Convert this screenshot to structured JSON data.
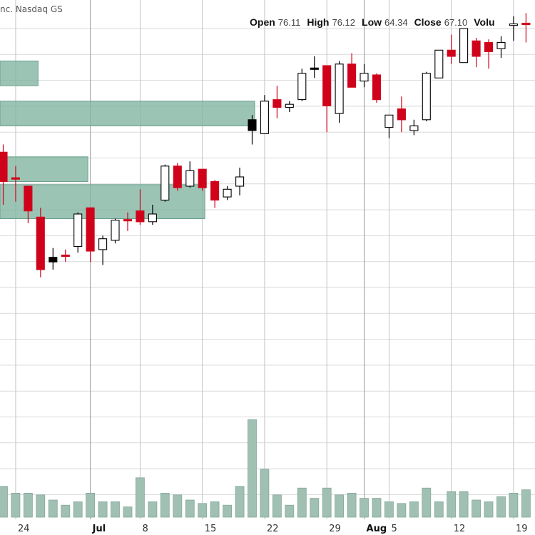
{
  "header": {
    "title": "nc. Nasdaq GS",
    "ohlc": [
      {
        "label": "Open",
        "value": "76.11"
      },
      {
        "label": "High",
        "value": "76.12"
      },
      {
        "label": "Low",
        "value": "64.34"
      },
      {
        "label": "Close",
        "value": "67.10"
      },
      {
        "label": "Volu",
        "value": ""
      }
    ]
  },
  "colors": {
    "up": "#ffffff",
    "down": "#d0021b",
    "black_candle": "#000000",
    "zone": "#7fb3a0",
    "volume": "#9fc0b2",
    "grid": "#d9d9d9",
    "vgrid": "#c4c4c4"
  },
  "chart_data": {
    "type": "candlestick",
    "title": "",
    "x_ticks": [
      {
        "label": "24",
        "bold": false,
        "index": 1
      },
      {
        "label": "Jul",
        "bold": true,
        "index": 7
      },
      {
        "label": "8",
        "bold": false,
        "index": 11
      },
      {
        "label": "15",
        "bold": false,
        "index": 16
      },
      {
        "label": "22",
        "bold": false,
        "index": 21
      },
      {
        "label": "29",
        "bold": false,
        "index": 26
      },
      {
        "label": "Aug",
        "bold": true,
        "index": 29
      },
      {
        "label": "5",
        "bold": false,
        "index": 31
      },
      {
        "label": "12",
        "bold": false,
        "index": 36
      },
      {
        "label": "19",
        "bold": false,
        "index": 41
      }
    ],
    "month_lines": [
      7,
      29
    ],
    "ylim": [
      60,
      84
    ],
    "volume_max": 100,
    "candles": [
      {
        "o": 76.0,
        "h": 76.5,
        "l": 72.6,
        "c": 74.1,
        "color": "down"
      },
      {
        "o": 74.3,
        "h": 75.1,
        "l": 72.8,
        "c": 74.3,
        "color": "down"
      },
      {
        "o": 73.8,
        "h": 73.8,
        "l": 71.4,
        "c": 72.2,
        "color": "down"
      },
      {
        "o": 71.8,
        "h": 72.4,
        "l": 67.9,
        "c": 68.4,
        "color": "down"
      },
      {
        "o": 68.9,
        "h": 69.8,
        "l": 68.4,
        "c": 69.2,
        "color": "black"
      },
      {
        "o": 69.3,
        "h": 69.7,
        "l": 68.9,
        "c": 69.3,
        "color": "down"
      },
      {
        "o": 69.9,
        "h": 72.1,
        "l": 69.5,
        "c": 72.0,
        "color": "up"
      },
      {
        "o": 72.4,
        "h": 72.4,
        "l": 68.9,
        "c": 69.6,
        "color": "down"
      },
      {
        "o": 69.7,
        "h": 70.6,
        "l": 68.7,
        "c": 70.4,
        "color": "up"
      },
      {
        "o": 70.3,
        "h": 71.7,
        "l": 70.1,
        "c": 71.6,
        "color": "up"
      },
      {
        "o": 71.6,
        "h": 72.1,
        "l": 70.9,
        "c": 71.6,
        "color": "down"
      },
      {
        "o": 71.5,
        "h": 73.6,
        "l": 71.3,
        "c": 72.2,
        "color": "down"
      },
      {
        "o": 71.5,
        "h": 72.6,
        "l": 71.3,
        "c": 72.0,
        "color": "up"
      },
      {
        "o": 72.9,
        "h": 75.2,
        "l": 72.8,
        "c": 75.1,
        "color": "up"
      },
      {
        "o": 75.1,
        "h": 75.3,
        "l": 73.5,
        "c": 73.7,
        "color": "down"
      },
      {
        "o": 73.8,
        "h": 75.4,
        "l": 73.7,
        "c": 74.8,
        "color": "up"
      },
      {
        "o": 74.9,
        "h": 74.9,
        "l": 73.5,
        "c": 73.7,
        "color": "down"
      },
      {
        "o": 74.1,
        "h": 74.2,
        "l": 72.4,
        "c": 72.9,
        "color": "down"
      },
      {
        "o": 73.1,
        "h": 73.8,
        "l": 72.9,
        "c": 73.6,
        "color": "up"
      },
      {
        "o": 73.8,
        "h": 75.0,
        "l": 73.2,
        "c": 74.4,
        "color": "up"
      },
      {
        "o": 78.1,
        "h": 78.4,
        "l": 76.5,
        "c": 77.4,
        "color": "black"
      },
      {
        "o": 77.2,
        "h": 79.7,
        "l": 77.2,
        "c": 79.3,
        "color": "up"
      },
      {
        "o": 79.4,
        "h": 80.3,
        "l": 78.2,
        "c": 78.9,
        "color": "down"
      },
      {
        "o": 78.9,
        "h": 79.3,
        "l": 78.6,
        "c": 79.1,
        "color": "up"
      },
      {
        "o": 79.4,
        "h": 81.4,
        "l": 79.3,
        "c": 81.1,
        "color": "up"
      },
      {
        "o": 81.4,
        "h": 82.2,
        "l": 80.8,
        "c": 81.4,
        "color": "black"
      },
      {
        "o": 81.6,
        "h": 81.6,
        "l": 77.3,
        "c": 79.0,
        "color": "down"
      },
      {
        "o": 78.5,
        "h": 81.9,
        "l": 77.9,
        "c": 81.7,
        "color": "up"
      },
      {
        "o": 81.7,
        "h": 82.4,
        "l": 80.3,
        "c": 80.2,
        "color": "down"
      },
      {
        "o": 80.6,
        "h": 81.7,
        "l": 80.2,
        "c": 81.1,
        "color": "up"
      },
      {
        "o": 81.0,
        "h": 81.1,
        "l": 79.2,
        "c": 79.4,
        "color": "down"
      },
      {
        "o": 77.6,
        "h": 78.4,
        "l": 76.9,
        "c": 78.4,
        "color": "up"
      },
      {
        "o": 78.8,
        "h": 79.6,
        "l": 77.3,
        "c": 78.1,
        "color": "down"
      },
      {
        "o": 77.4,
        "h": 78.1,
        "l": 77.1,
        "c": 77.7,
        "color": "up"
      },
      {
        "o": 78.1,
        "h": 81.2,
        "l": 78.0,
        "c": 81.1,
        "color": "up"
      },
      {
        "o": 80.8,
        "h": 82.6,
        "l": 80.8,
        "c": 82.6,
        "color": "up"
      },
      {
        "o": 82.6,
        "h": 83.6,
        "l": 81.7,
        "c": 82.2,
        "color": "down"
      },
      {
        "o": 81.8,
        "h": 84.0,
        "l": 81.8,
        "c": 84.0,
        "color": "up"
      },
      {
        "o": 83.2,
        "h": 83.4,
        "l": 81.5,
        "c": 82.2,
        "color": "down"
      },
      {
        "o": 83.1,
        "h": 83.3,
        "l": 81.4,
        "c": 82.5,
        "color": "down"
      },
      {
        "o": 82.7,
        "h": 83.5,
        "l": 82.1,
        "c": 83.1,
        "color": "up"
      },
      {
        "o": 84.3,
        "h": 84.8,
        "l": 83.2,
        "c": 84.2,
        "color": "up"
      },
      {
        "o": 84.3,
        "h": 85.0,
        "l": 83.1,
        "c": 84.3,
        "color": "down"
      }
    ],
    "volume": [
      18,
      14,
      14,
      13,
      10,
      7,
      9,
      14,
      9,
      9,
      6,
      23,
      9,
      14,
      13,
      10,
      8,
      9,
      7,
      18,
      57,
      28,
      13,
      7,
      17,
      11,
      17,
      13,
      14,
      11,
      11,
      9,
      8,
      9,
      17,
      9,
      15,
      15,
      10,
      9,
      12,
      14,
      16
    ],
    "zones": [
      {
        "start_index": -5.2,
        "end_index": 2.8,
        "y_top": 81.9,
        "y_bottom": 80.3
      },
      {
        "start_index": -5.2,
        "end_index": 20.2,
        "y_top": 79.3,
        "y_bottom": 77.7
      },
      {
        "start_index": -5.2,
        "end_index": 6.8,
        "y_top": 75.7,
        "y_bottom": 74.1
      },
      {
        "start_index": -5.2,
        "end_index": 16.2,
        "y_top": 73.9,
        "y_bottom": 71.7
      },
      {
        "start_index": -5.2,
        "end_index": -1.8,
        "y_top": 68.2,
        "y_bottom": 66.6
      }
    ]
  }
}
